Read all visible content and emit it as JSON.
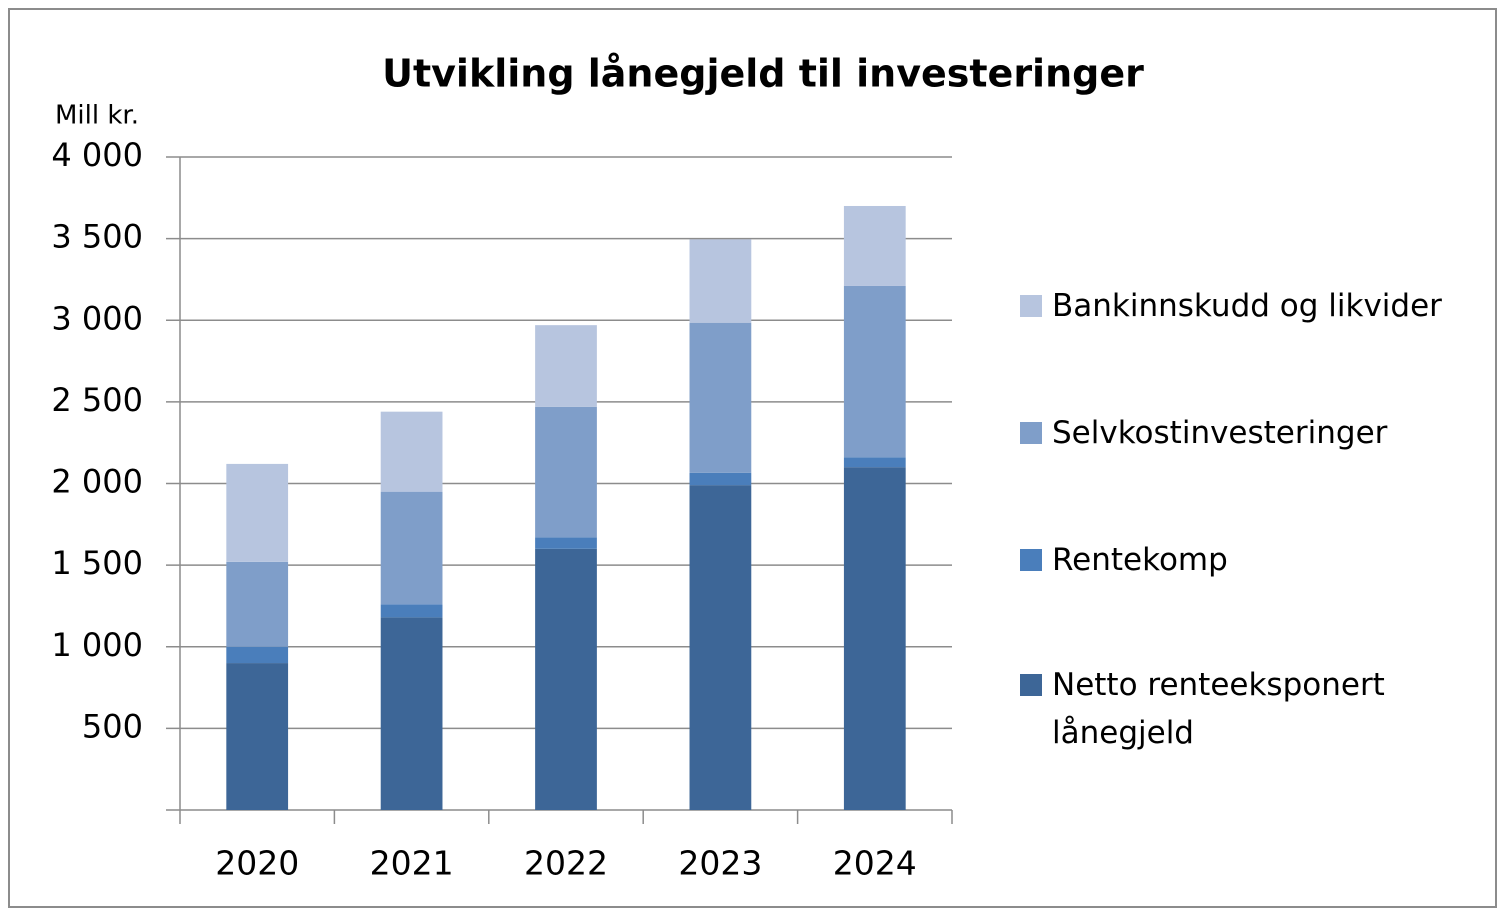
{
  "chart_data": {
    "type": "stacked_bar",
    "title": "Utvikling lånegjeld til investeringer",
    "y_label": "Mill kr.",
    "categories": [
      "2020",
      "2021",
      "2022",
      "2023",
      "2024"
    ],
    "series": [
      {
        "name": "Netto renteeksponert lånegjeld",
        "color": "#3d6697",
        "values": [
          900,
          1180,
          1600,
          1990,
          2100
        ]
      },
      {
        "name": "Rentekomp",
        "color": "#4a7ebb",
        "values": [
          100,
          80,
          70,
          75,
          60
        ]
      },
      {
        "name": "Selvkostinvesteringer",
        "color": "#7f9ec9",
        "values": [
          520,
          690,
          800,
          920,
          1050
        ]
      },
      {
        "name": "Bankinnskudd og likvider",
        "color": "#b7c5df",
        "values": [
          600,
          490,
          500,
          510,
          490
        ]
      }
    ],
    "ylim": [
      0,
      4000
    ],
    "yticks": [
      500,
      {
        "value": 1000,
        "label": "1 000"
      },
      {
        "value": 1500,
        "label": "1 500"
      },
      {
        "value": 2000,
        "label": "2 000"
      },
      {
        "value": 2500,
        "label": "2 500"
      },
      {
        "value": 3000,
        "label": "3 000"
      },
      {
        "value": 3500,
        "label": "3 500"
      },
      {
        "value": 4000,
        "label": "4 000"
      }
    ],
    "grid": true,
    "legend": "right"
  }
}
